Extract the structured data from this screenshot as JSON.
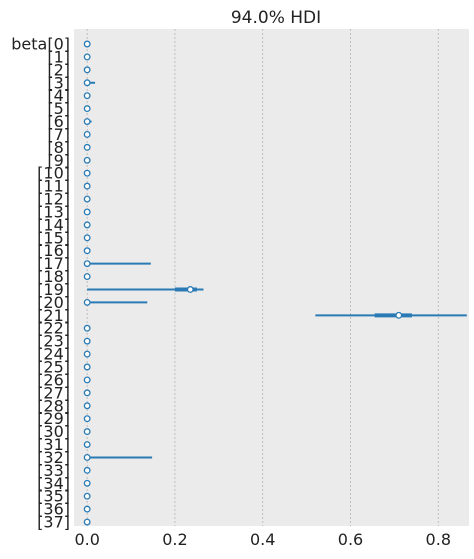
{
  "chart_data": {
    "type": "forest",
    "title": "94.0% HDI",
    "xlim": [
      -0.03,
      0.87
    ],
    "xticks": [
      0.0,
      0.2,
      0.4,
      0.6,
      0.8
    ],
    "xtick_labels": [
      "0.0",
      "0.2",
      "0.4",
      "0.6",
      "0.8"
    ],
    "grid": "vertical dashed at x ticks",
    "background_color": "#ebebeb",
    "line_color": "#2a7bb5",
    "rows": [
      {
        "label": "beta[0]",
        "point": 0.0,
        "hdi": [
          0.0,
          0.0
        ],
        "iqr": [
          0.0,
          0.0
        ]
      },
      {
        "label": "[1]",
        "point": 0.0,
        "hdi": [
          0.0,
          0.0
        ],
        "iqr": [
          0.0,
          0.0
        ]
      },
      {
        "label": "[2]",
        "point": 0.0,
        "hdi": [
          0.0,
          0.0
        ],
        "iqr": [
          0.0,
          0.0
        ]
      },
      {
        "label": "[3]",
        "point": 0.0,
        "hdi": [
          0.0,
          0.018
        ],
        "iqr": [
          0.0,
          0.006
        ]
      },
      {
        "label": "[4]",
        "point": 0.0,
        "hdi": [
          0.0,
          0.0
        ],
        "iqr": [
          0.0,
          0.0
        ]
      },
      {
        "label": "[5]",
        "point": 0.0,
        "hdi": [
          0.0,
          0.0
        ],
        "iqr": [
          0.0,
          0.0
        ]
      },
      {
        "label": "[6]",
        "point": 0.0,
        "hdi": [
          0.0,
          0.01
        ],
        "iqr": [
          0.0,
          0.004
        ]
      },
      {
        "label": "[7]",
        "point": 0.0,
        "hdi": [
          0.0,
          0.0
        ],
        "iqr": [
          0.0,
          0.0
        ]
      },
      {
        "label": "[8]",
        "point": 0.0,
        "hdi": [
          0.0,
          0.0
        ],
        "iqr": [
          0.0,
          0.0
        ]
      },
      {
        "label": "[9]",
        "point": 0.0,
        "hdi": [
          0.0,
          0.0
        ],
        "iqr": [
          0.0,
          0.0
        ]
      },
      {
        "label": "[10]",
        "point": 0.0,
        "hdi": [
          0.0,
          0.0
        ],
        "iqr": [
          0.0,
          0.0
        ]
      },
      {
        "label": "[11]",
        "point": 0.0,
        "hdi": [
          0.0,
          0.0
        ],
        "iqr": [
          0.0,
          0.0
        ]
      },
      {
        "label": "[12]",
        "point": 0.0,
        "hdi": [
          0.0,
          0.0
        ],
        "iqr": [
          0.0,
          0.0
        ]
      },
      {
        "label": "[13]",
        "point": 0.0,
        "hdi": [
          0.0,
          0.0
        ],
        "iqr": [
          0.0,
          0.0
        ]
      },
      {
        "label": "[14]",
        "point": 0.0,
        "hdi": [
          0.0,
          0.0
        ],
        "iqr": [
          0.0,
          0.0
        ]
      },
      {
        "label": "[15]",
        "point": 0.0,
        "hdi": [
          0.0,
          0.0
        ],
        "iqr": [
          0.0,
          0.0
        ]
      },
      {
        "label": "[16]",
        "point": 0.0,
        "hdi": [
          0.0,
          0.0
        ],
        "iqr": [
          0.0,
          0.0
        ]
      },
      {
        "label": "[17]",
        "point": 0.0,
        "hdi": [
          0.0,
          0.145
        ],
        "iqr": [
          0.0,
          0.0
        ]
      },
      {
        "label": "[18]",
        "point": 0.0,
        "hdi": [
          0.0,
          0.0
        ],
        "iqr": [
          0.0,
          0.0
        ]
      },
      {
        "label": "[19]",
        "point": 0.235,
        "hdi": [
          0.0,
          0.265
        ],
        "iqr": [
          0.2,
          0.25
        ]
      },
      {
        "label": "[20]",
        "point": 0.0,
        "hdi": [
          0.0,
          0.137
        ],
        "iqr": [
          0.0,
          0.0
        ]
      },
      {
        "label": "[21]",
        "point": 0.71,
        "hdi": [
          0.52,
          0.865
        ],
        "iqr": [
          0.655,
          0.74
        ]
      },
      {
        "label": "[22]",
        "point": 0.0,
        "hdi": [
          0.0,
          0.0
        ],
        "iqr": [
          0.0,
          0.0
        ]
      },
      {
        "label": "[23]",
        "point": 0.0,
        "hdi": [
          0.0,
          0.0
        ],
        "iqr": [
          0.0,
          0.0
        ]
      },
      {
        "label": "[24]",
        "point": 0.0,
        "hdi": [
          0.0,
          0.0
        ],
        "iqr": [
          0.0,
          0.0
        ]
      },
      {
        "label": "[25]",
        "point": 0.0,
        "hdi": [
          0.0,
          0.0
        ],
        "iqr": [
          0.0,
          0.0
        ]
      },
      {
        "label": "[26]",
        "point": 0.0,
        "hdi": [
          0.0,
          0.0
        ],
        "iqr": [
          0.0,
          0.0
        ]
      },
      {
        "label": "[27]",
        "point": 0.0,
        "hdi": [
          0.0,
          0.0
        ],
        "iqr": [
          0.0,
          0.0
        ]
      },
      {
        "label": "[28]",
        "point": 0.0,
        "hdi": [
          0.0,
          0.0
        ],
        "iqr": [
          0.0,
          0.0
        ]
      },
      {
        "label": "[29]",
        "point": 0.0,
        "hdi": [
          0.0,
          0.0
        ],
        "iqr": [
          0.0,
          0.0
        ]
      },
      {
        "label": "[30]",
        "point": 0.0,
        "hdi": [
          0.0,
          0.0
        ],
        "iqr": [
          0.0,
          0.0
        ]
      },
      {
        "label": "[31]",
        "point": 0.0,
        "hdi": [
          0.0,
          0.0
        ],
        "iqr": [
          0.0,
          0.0
        ]
      },
      {
        "label": "[32]",
        "point": 0.0,
        "hdi": [
          0.0,
          0.148
        ],
        "iqr": [
          0.0,
          0.0
        ]
      },
      {
        "label": "[33]",
        "point": 0.0,
        "hdi": [
          0.0,
          0.0
        ],
        "iqr": [
          0.0,
          0.0
        ]
      },
      {
        "label": "[34]",
        "point": 0.0,
        "hdi": [
          0.0,
          0.0
        ],
        "iqr": [
          0.0,
          0.0
        ]
      },
      {
        "label": "[35]",
        "point": 0.0,
        "hdi": [
          0.0,
          0.0
        ],
        "iqr": [
          0.0,
          0.0
        ]
      },
      {
        "label": "[36]",
        "point": 0.0,
        "hdi": [
          0.0,
          0.0
        ],
        "iqr": [
          0.0,
          0.0
        ]
      },
      {
        "label": "[37]",
        "point": 0.0,
        "hdi": [
          0.0,
          0.0
        ],
        "iqr": [
          0.0,
          0.0
        ]
      }
    ]
  }
}
